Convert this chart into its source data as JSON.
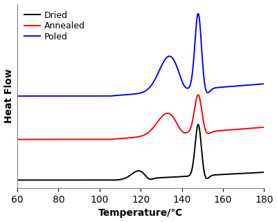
{
  "xlim": [
    60,
    180
  ],
  "xlabel": "Temperature/℃",
  "ylabel": "Heat Flow",
  "legend_labels": [
    "Dried",
    "Annealed",
    "Poled"
  ],
  "colors": [
    "black",
    "red",
    "blue"
  ],
  "offsets": [
    0.0,
    0.3,
    0.62
  ],
  "background_color": "#ffffff",
  "linewidth": 1.4,
  "xticks": [
    60,
    80,
    100,
    120,
    140,
    160,
    180
  ]
}
